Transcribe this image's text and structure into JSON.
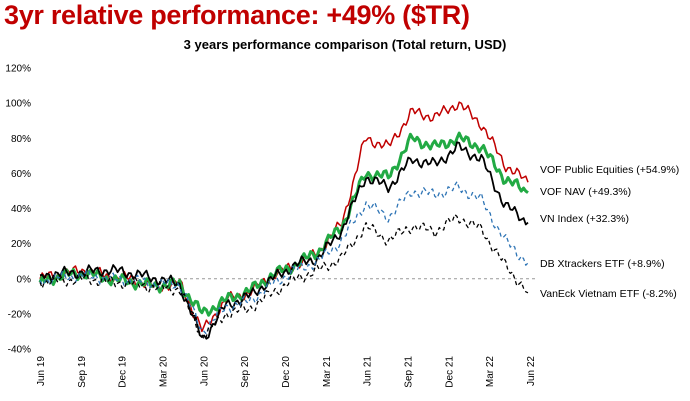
{
  "header": {
    "headline": "3yr relative performance: +49% ($TR)",
    "subtitle": "3 years performance comparison (Total return, USD)"
  },
  "colors": {
    "headline": "#c00000",
    "vof_public_equities": "#c00000",
    "vof_nav": "#22aa44",
    "vn_index": "#000000",
    "db_xtrackers": "#2e74b5",
    "vaneck": "#000000",
    "zero_line": "#999999"
  },
  "chart_data": {
    "type": "line",
    "title": "3 years performance comparison (Total return, USD)",
    "x_labels": [
      "Jun 19",
      "Sep 19",
      "Dec 19",
      "Mar 20",
      "Jun 20",
      "Sep 20",
      "Dec 20",
      "Mar 21",
      "Jun 21",
      "Sep 21",
      "Dec 21",
      "Mar 22",
      "Jun 22"
    ],
    "ylim": [
      -40,
      120
    ],
    "y_ticks": [
      -40,
      -20,
      0,
      20,
      40,
      60,
      80,
      100,
      120
    ],
    "y_tick_labels": [
      "-40%",
      "-20%",
      "0%",
      "20%",
      "40%",
      "60%",
      "80%",
      "100%",
      "120%"
    ],
    "zero_line": "dashed",
    "grid": false,
    "series": [
      {
        "key": "vof_public_equities",
        "label": "VOF Public Equities (+54.9%)",
        "style": "solid",
        "width": 1.5,
        "values": [
          0,
          3,
          5,
          1,
          0,
          -5,
          -2,
          -30,
          -12,
          -8,
          2,
          8,
          15,
          32,
          80,
          75,
          95,
          92,
          100,
          88,
          65,
          55
        ]
      },
      {
        "key": "vof_nav",
        "label": "VOF NAV (+49.3%)",
        "style": "solid",
        "width": 3,
        "values": [
          -2,
          2,
          3,
          0,
          -2,
          -4,
          -3,
          -20,
          -12,
          -7,
          2,
          8,
          16,
          30,
          60,
          58,
          80,
          75,
          80,
          75,
          57,
          49
        ]
      },
      {
        "key": "vn_index",
        "label": "VN Index (+32.3%)",
        "style": "solid",
        "width": 1.8,
        "values": [
          2,
          3,
          4,
          5,
          3,
          0,
          -3,
          -35,
          -15,
          -10,
          0,
          8,
          12,
          28,
          58,
          52,
          68,
          65,
          75,
          68,
          42,
          32
        ]
      },
      {
        "key": "db_xtrackers",
        "label": "DB Xtrackers ETF (+8.9%)",
        "style": "dashed",
        "width": 1.3,
        "values": [
          -1,
          1,
          2,
          0,
          -1,
          -3,
          -3,
          -30,
          -16,
          -13,
          -3,
          5,
          10,
          22,
          43,
          35,
          50,
          48,
          52,
          45,
          22,
          9
        ]
      },
      {
        "key": "vaneck",
        "label": "VanEck Vietnam ETF (-8.2%)",
        "style": "dashed",
        "width": 1.3,
        "values": [
          -2,
          -1,
          0,
          -2,
          -3,
          -5,
          -6,
          -33,
          -20,
          -17,
          -8,
          0,
          5,
          12,
          30,
          22,
          30,
          27,
          35,
          28,
          8,
          -8
        ]
      }
    ]
  }
}
